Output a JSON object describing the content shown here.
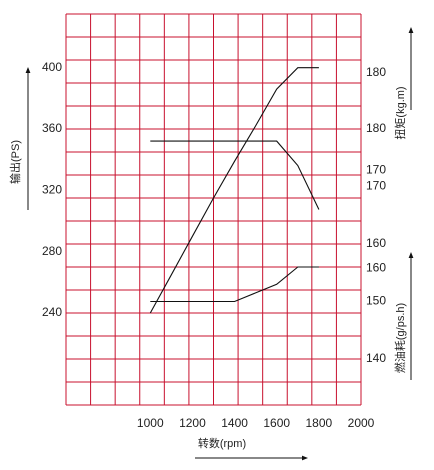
{
  "chart_data": {
    "type": "line",
    "x": [
      1000,
      1100,
      1200,
      1300,
      1400,
      1500,
      1600,
      1700,
      1800
    ],
    "xlabel": "转数(rpm)",
    "xlim": [
      600,
      2000
    ],
    "xticks": [
      1000,
      1200,
      1400,
      1600,
      1800,
      2000
    ],
    "grid": true,
    "axes": {
      "output": {
        "label": "输出(PS)",
        "side": "left",
        "lim": [
          180,
          435
        ],
        "ticks": [
          240,
          280,
          320,
          360,
          400
        ]
      },
      "torque": {
        "label": "扭矩(kg.m)",
        "side": "right",
        "lim": [
          146,
          186
        ],
        "ticks": [
          160,
          170,
          180
        ]
      },
      "fuel": {
        "label": "燃油耗(g/ps.h)",
        "side": "right",
        "lim": [
          132,
          200
        ],
        "ticks": [
          140,
          150,
          160,
          170,
          180
        ]
      }
    },
    "series": [
      {
        "axis": "torque",
        "x": [
          1000,
          1200,
          1400,
          1600,
          1700,
          1800
        ],
        "values": [
          173,
          173,
          173,
          173,
          170.5,
          166
        ]
      },
      {
        "axis": "output",
        "x": [
          1000,
          1100,
          1200,
          1300,
          1400,
          1500,
          1600,
          1700,
          1800
        ],
        "values": [
          240,
          265,
          290,
          315,
          339,
          362,
          386,
          400,
          400
        ]
      },
      {
        "axis": "fuel",
        "x": [
          1000,
          1200,
          1400,
          1500,
          1600,
          1700,
          1800
        ],
        "values": [
          150,
          150,
          150,
          151.5,
          153,
          156,
          156
        ]
      }
    ]
  }
}
